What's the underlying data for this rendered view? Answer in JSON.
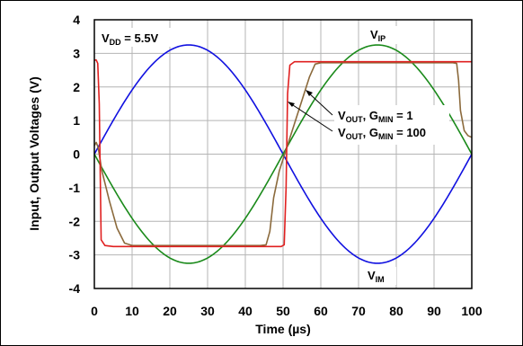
{
  "chart_data": {
    "type": "line",
    "xlabel": "Time (µs)",
    "ylabel": "Input, Output Voltages (V)",
    "xlim": [
      0,
      100
    ],
    "ylim": [
      -4,
      4
    ],
    "x_ticks": [
      "0",
      "10",
      "20",
      "30",
      "40",
      "50",
      "60",
      "70",
      "80",
      "90",
      "100"
    ],
    "y_ticks": [
      "4",
      "3",
      "2",
      "1",
      "0",
      "-1",
      "-2",
      "-3",
      "-4"
    ],
    "grid": true,
    "supply_label": {
      "main": "V",
      "sub": "DD",
      "rest": " = 5.5V"
    },
    "annotations": {
      "vip": {
        "main": "V",
        "sub": "IP"
      },
      "vim": {
        "main": "V",
        "sub": "IM"
      },
      "gmin1": {
        "v": "V",
        "vsub": "OUT",
        "g": ", G",
        "gsub": "MIN",
        "rest": " = 1"
      },
      "gmin100": {
        "v": "V",
        "vsub": "OUT",
        "g": ", G",
        "gsub": "MIN",
        "rest": " = 100"
      }
    },
    "series": [
      {
        "name": "V_IP",
        "color": "#1010e0",
        "kind": "sine",
        "amplitude": 3.25,
        "period_us": 100,
        "phase": 1
      },
      {
        "name": "V_IM",
        "color": "#1a8a1a",
        "kind": "sine",
        "amplitude": 3.25,
        "period_us": 100,
        "phase": -1
      },
      {
        "name": "V_OUT, G_MIN = 1",
        "color": "#8b6a3c",
        "x": [
          0,
          0.5,
          1,
          2,
          4,
          6,
          8,
          10,
          20,
          30,
          40,
          44,
          45.5,
          46.5,
          47.5,
          49,
          51,
          53,
          55,
          57,
          58.5,
          60,
          70,
          80,
          90,
          95,
          96,
          96.5,
          97,
          98,
          99,
          100
        ],
        "y": [
          0.25,
          0.35,
          0.2,
          -0.5,
          -1.4,
          -2.2,
          -2.65,
          -2.72,
          -2.72,
          -2.72,
          -2.72,
          -2.72,
          -2.7,
          -2.3,
          -1.3,
          -0.5,
          0.2,
          0.9,
          1.6,
          2.3,
          2.68,
          2.72,
          2.72,
          2.72,
          2.72,
          2.72,
          2.7,
          2.2,
          1.3,
          0.7,
          0.55,
          0.5
        ]
      },
      {
        "name": "V_OUT, G_MIN = 100",
        "color": "#e02020",
        "x": [
          0,
          0.15,
          0.5,
          0.9,
          1.3,
          1.8,
          2.8,
          5,
          10,
          20,
          30,
          40,
          49.5,
          50.3,
          50.8,
          51.2,
          51.8,
          53,
          55,
          60,
          70,
          80,
          90,
          100
        ],
        "y": [
          2.78,
          2.8,
          2.8,
          2.7,
          1.5,
          -2.55,
          -2.72,
          -2.75,
          -2.75,
          -2.75,
          -2.75,
          -2.75,
          -2.75,
          -2.7,
          -1.0,
          1.8,
          2.65,
          2.75,
          2.75,
          2.75,
          2.75,
          2.75,
          2.75,
          2.75
        ]
      }
    ]
  }
}
